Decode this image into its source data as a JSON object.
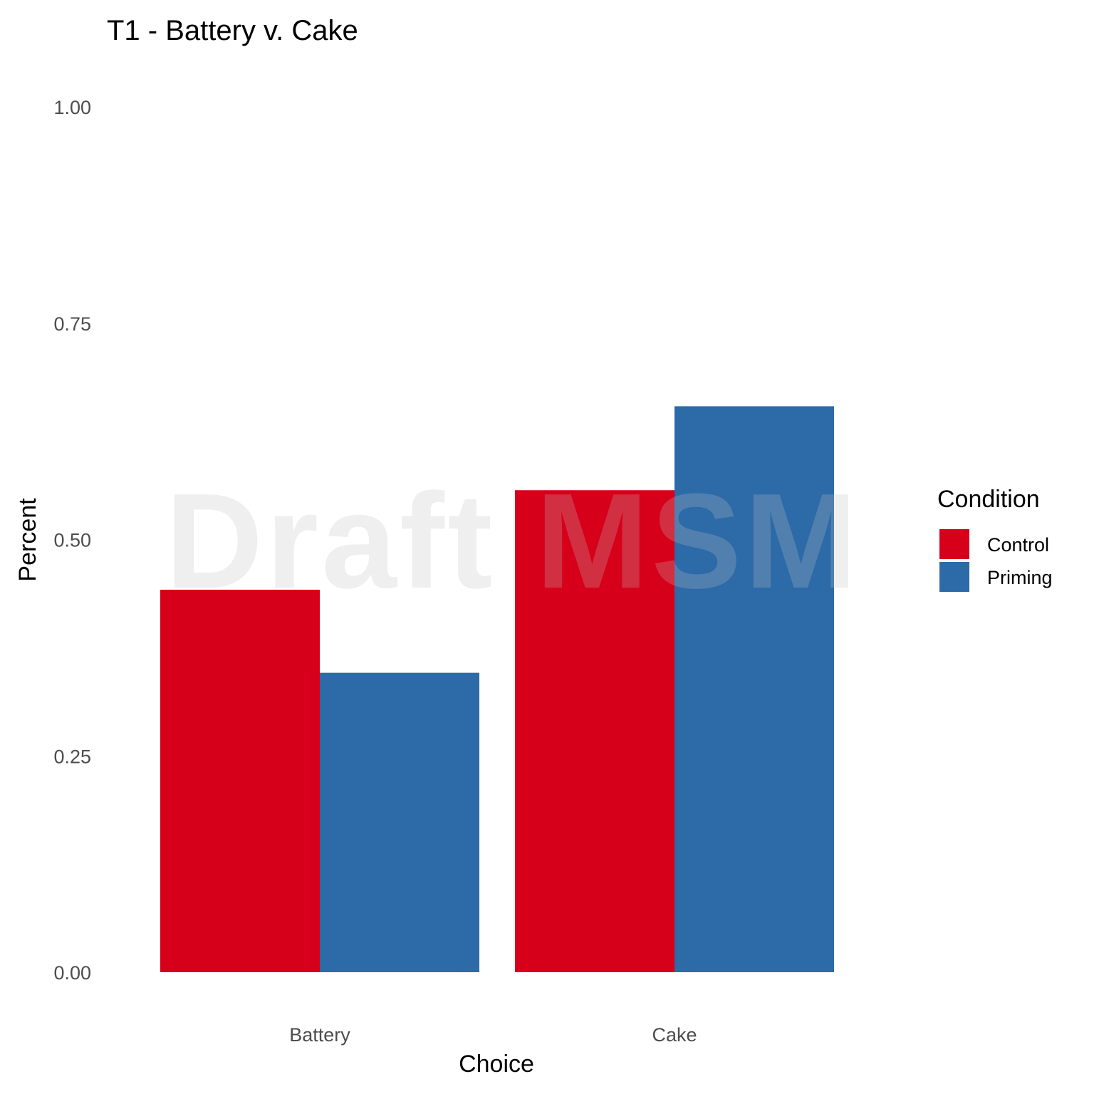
{
  "chart_data": {
    "type": "bar",
    "title": "T1 - Battery v. Cake",
    "xlabel": "Choice",
    "ylabel": "Percent",
    "categories": [
      "Battery",
      "Cake"
    ],
    "series": [
      {
        "name": "Control",
        "color": "#D7001A",
        "values": [
          0.442,
          0.557
        ]
      },
      {
        "name": "Priming",
        "color": "#2C6AA8",
        "values": [
          0.346,
          0.654
        ]
      }
    ],
    "ylim": [
      0,
      1
    ],
    "yticks": [
      "0.00",
      "0.25",
      "0.50",
      "0.75",
      "1.00"
    ],
    "legend_title": "Condition",
    "legend_position": "right",
    "grid": false
  },
  "watermark": "Draft MSM"
}
